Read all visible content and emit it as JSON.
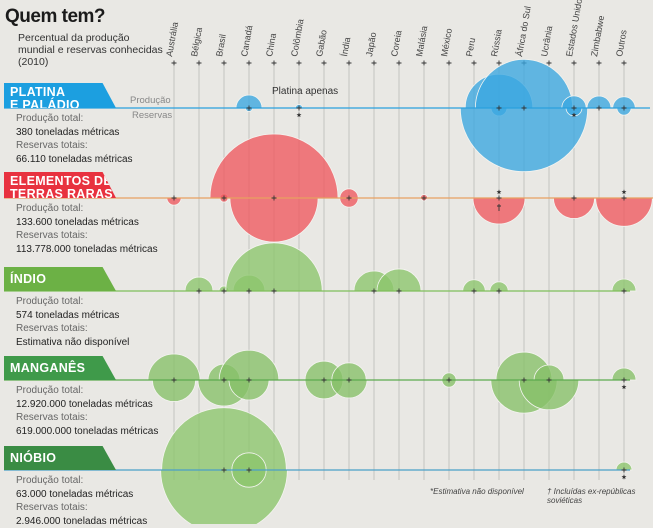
{
  "title": "Quem tem?",
  "subtitle": "Percentual da produção mundial e reservas conhecidas (2010)",
  "axis_labels": {
    "production": "Produção",
    "reserves": "Reservas"
  },
  "platinum_note": "Platina apenas",
  "footnotes": {
    "star": "*Estimativa não disponível",
    "dagger": "† Incluídas ex-repúblicas soviéticas"
  },
  "info_labels": {
    "production": "Produção total:",
    "reserves": "Reservas totais:"
  },
  "colors": {
    "platina": "#1c9fe0",
    "terras": "#e8323f",
    "indio": "#6cb145",
    "manganes": "#3f9a4a",
    "niobio": "#3a8c44"
  },
  "chart_data": {
    "type": "bubble",
    "title": "Quem tem?",
    "unit": "% of world total",
    "countries": [
      "Austrália",
      "Bélgica",
      "Brasil",
      "Canadá",
      "China",
      "Colômbia",
      "Gabão",
      "Índia",
      "Japão",
      "Coreia",
      "Malásia",
      "México",
      "Peru",
      "Rússia",
      "África do Sul",
      "Ucrânia",
      "Estados Unidos",
      "Zimbabwe",
      "Outros"
    ],
    "minerals": [
      {
        "name": "PLATINA E PALÁDIO",
        "line1": "PLATINA",
        "line2": "E PALÁDIO",
        "production_total": "380 toneladas métricas",
        "reserves_total": "66.110 toneladas métricas",
        "production": [
          null,
          null,
          null,
          4,
          null,
          0.3,
          null,
          null,
          null,
          null,
          null,
          null,
          null,
          27,
          56,
          null,
          3.5,
          3.4,
          3
        ],
        "reserves": [
          null,
          null,
          null,
          0.3,
          null,
          null,
          null,
          null,
          null,
          null,
          null,
          null,
          null,
          1.5,
          96,
          null,
          1.5,
          null,
          1.2
        ],
        "stars": [
          "Colômbia",
          "Estados Unidos"
        ],
        "daggers": []
      },
      {
        "name": "ELEMENTOS DE TERRAS RARAS",
        "line1": "ELEMENTOS DE",
        "line2": "TERRAS RARAS",
        "production_total": "133.600 toneladas métricas",
        "reserves_total": "113.778.000 toneladas métricas",
        "production": [
          null,
          null,
          0.4,
          null,
          97,
          null,
          null,
          2,
          null,
          null,
          0.3,
          null,
          null,
          null,
          null,
          null,
          null,
          null,
          null
        ],
        "reserves": [
          1.2,
          null,
          0.4,
          null,
          46,
          null,
          null,
          2,
          null,
          null,
          0.2,
          null,
          null,
          16,
          null,
          null,
          10,
          null,
          19
        ],
        "stars": [
          "Rússia",
          "Outros"
        ],
        "daggers": [
          "Rússia"
        ]
      },
      {
        "name": "ÍNDIO",
        "line1": "ÍNDIO",
        "line2": "",
        "production_total": "574 toneladas métricas",
        "reserves_total": "Estimativa não disponível",
        "production": [
          null,
          4.6,
          0.6,
          6,
          55,
          null,
          null,
          null,
          9.5,
          11.5,
          null,
          null,
          3,
          2,
          null,
          null,
          null,
          null,
          3.4
        ],
        "reserves": [],
        "stars": [],
        "daggers": []
      },
      {
        "name": "MANGANÊS",
        "line1": "MANGANÊS",
        "line2": "",
        "production_total": "12.920.000 toneladas métricas",
        "reserves_total": "619.000.000 toneladas métricas",
        "production": [
          16,
          null,
          6,
          21,
          null,
          null,
          8.5,
          7,
          null,
          null,
          null,
          1.2,
          null,
          null,
          18.5,
          5.3,
          null,
          null,
          3.4
        ],
        "reserves": [
          11,
          null,
          16,
          9.5,
          null,
          null,
          8.5,
          7.7,
          null,
          null,
          null,
          1.2,
          null,
          null,
          26,
          21,
          null,
          null,
          null
        ],
        "stars": [
          "Outros"
        ],
        "daggers": []
      },
      {
        "name": "NIÓBIO",
        "line1": "NIÓBIO",
        "line2": "",
        "production_total": "63.000 toneladas métricas",
        "reserves_total": "2.946.000 toneladas métricas",
        "production": [
          null,
          null,
          92,
          7,
          null,
          null,
          null,
          null,
          null,
          null,
          null,
          null,
          null,
          null,
          null,
          null,
          null,
          null,
          1.5
        ],
        "reserves": [
          null,
          null,
          95,
          7,
          null,
          null,
          null,
          null,
          null,
          null,
          null,
          null,
          null,
          null,
          null,
          null,
          null,
          null,
          null
        ],
        "stars": [
          "Outros"
        ],
        "daggers": []
      }
    ]
  }
}
